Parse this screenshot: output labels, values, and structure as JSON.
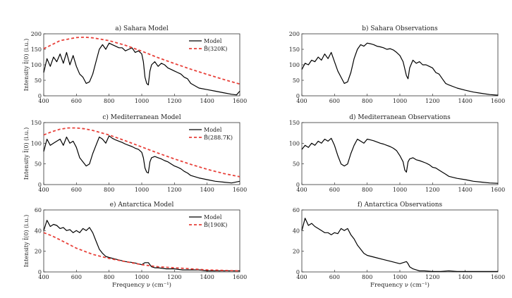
{
  "chart_data": [
    {
      "type": "line",
      "title": "a) Sahara Model",
      "ylabel": "Intensity Ĩ(0) (i.u.)",
      "xlabel": "",
      "xlim": [
        400,
        1600
      ],
      "ylim": [
        0,
        200
      ],
      "xticks": [
        "400",
        "600",
        "800",
        "1000",
        "1200",
        "1400",
        "1600"
      ],
      "yticks": [
        "0",
        "50",
        "100",
        "150",
        "200"
      ],
      "legend": "top-right",
      "series": [
        {
          "name": "Model",
          "color": "#000000",
          "dash": "solid",
          "x": [
            400,
            420,
            440,
            460,
            480,
            500,
            520,
            540,
            560,
            580,
            600,
            620,
            640,
            660,
            680,
            700,
            720,
            740,
            760,
            780,
            800,
            820,
            840,
            860,
            880,
            900,
            920,
            940,
            960,
            980,
            1000,
            1010,
            1020,
            1030,
            1040,
            1050,
            1060,
            1080,
            1100,
            1120,
            1140,
            1160,
            1180,
            1200,
            1220,
            1240,
            1260,
            1280,
            1300,
            1350,
            1400,
            1450,
            1500,
            1550,
            1580,
            1600
          ],
          "y": [
            75,
            120,
            95,
            125,
            110,
            135,
            105,
            140,
            100,
            130,
            95,
            70,
            60,
            40,
            45,
            70,
            110,
            150,
            165,
            150,
            170,
            165,
            160,
            155,
            155,
            145,
            150,
            155,
            140,
            145,
            135,
            110,
            60,
            40,
            35,
            80,
            100,
            110,
            95,
            105,
            100,
            90,
            85,
            80,
            75,
            70,
            60,
            55,
            40,
            25,
            20,
            15,
            10,
            5,
            3,
            15
          ]
        },
        {
          "name": "B̃(320K)",
          "color": "#e8413a",
          "dash": "dashed",
          "x": [
            400,
            500,
            600,
            650,
            700,
            800,
            900,
            1000,
            1100,
            1200,
            1300,
            1400,
            1500,
            1600
          ],
          "y": [
            152,
            178,
            188,
            189,
            187,
            178,
            163,
            144,
            123,
            104,
            86,
            69,
            53,
            38
          ]
        }
      ]
    },
    {
      "type": "line",
      "title": "b) Sahara Observations",
      "ylabel": "",
      "xlabel": "",
      "xlim": [
        400,
        1600
      ],
      "ylim": [
        0,
        200
      ],
      "xticks": [
        "400",
        "600",
        "800",
        "1000",
        "1200",
        "1400",
        "1600"
      ],
      "yticks": [
        "0",
        "50",
        "100",
        "150",
        "200"
      ],
      "series": [
        {
          "name": "",
          "color": "#000000",
          "dash": "solid",
          "x": [
            400,
            420,
            440,
            460,
            480,
            500,
            520,
            540,
            560,
            580,
            600,
            620,
            640,
            660,
            680,
            700,
            720,
            740,
            760,
            780,
            800,
            820,
            840,
            860,
            880,
            900,
            920,
            940,
            960,
            980,
            1000,
            1020,
            1040,
            1050,
            1060,
            1080,
            1100,
            1120,
            1140,
            1160,
            1180,
            1200,
            1220,
            1240,
            1260,
            1280,
            1300,
            1350,
            1400,
            1450,
            1500,
            1550,
            1600
          ],
          "y": [
            85,
            105,
            100,
            115,
            110,
            125,
            115,
            135,
            120,
            140,
            110,
            80,
            60,
            40,
            45,
            75,
            120,
            150,
            165,
            160,
            170,
            168,
            165,
            160,
            158,
            155,
            150,
            152,
            148,
            140,
            130,
            110,
            65,
            55,
            90,
            115,
            105,
            110,
            100,
            100,
            95,
            90,
            75,
            70,
            55,
            40,
            35,
            25,
            18,
            12,
            8,
            4,
            2
          ]
        }
      ]
    },
    {
      "type": "line",
      "title": "c) Mediterranean Model",
      "ylabel": "Intensity Ĩ(0) (i.u.)",
      "xlabel": "",
      "xlim": [
        400,
        1600
      ],
      "ylim": [
        0,
        150
      ],
      "xticks": [
        "400",
        "600",
        "800",
        "1000",
        "1200",
        "1400",
        "1600"
      ],
      "yticks": [
        "0",
        "50",
        "100",
        "150"
      ],
      "legend": "top-right",
      "series": [
        {
          "name": "Model",
          "color": "#000000",
          "dash": "solid",
          "x": [
            400,
            420,
            440,
            460,
            480,
            500,
            520,
            540,
            560,
            580,
            600,
            620,
            640,
            660,
            680,
            700,
            720,
            740,
            760,
            780,
            800,
            820,
            840,
            860,
            880,
            900,
            920,
            940,
            960,
            980,
            1000,
            1010,
            1020,
            1030,
            1040,
            1050,
            1060,
            1080,
            1100,
            1120,
            1140,
            1160,
            1180,
            1200,
            1220,
            1240,
            1260,
            1280,
            1300,
            1350,
            1400,
            1450,
            1500,
            1550,
            1600
          ],
          "y": [
            80,
            110,
            95,
            100,
            105,
            110,
            95,
            115,
            100,
            105,
            90,
            65,
            55,
            45,
            50,
            75,
            95,
            115,
            110,
            100,
            118,
            112,
            108,
            105,
            102,
            98,
            95,
            92,
            88,
            85,
            78,
            65,
            40,
            30,
            28,
            55,
            65,
            68,
            65,
            62,
            58,
            55,
            50,
            45,
            42,
            38,
            32,
            28,
            22,
            16,
            12,
            8,
            6,
            4,
            8
          ]
        },
        {
          "name": "B̃(288.7K)",
          "color": "#e8413a",
          "dash": "dashed",
          "x": [
            400,
            450,
            500,
            550,
            600,
            650,
            700,
            800,
            900,
            1000,
            1100,
            1200,
            1300,
            1400,
            1500,
            1600
          ],
          "y": [
            120,
            128,
            134,
            137,
            137,
            135,
            131,
            120,
            106,
            91,
            76,
            62,
            49,
            37,
            27,
            19
          ]
        }
      ]
    },
    {
      "type": "line",
      "title": "d) Mediterranean Observations",
      "ylabel": "",
      "xlabel": "",
      "xlim": [
        400,
        1600
      ],
      "ylim": [
        0,
        150
      ],
      "xticks": [
        "400",
        "600",
        "800",
        "1000",
        "1200",
        "1400",
        "1600"
      ],
      "yticks": [
        "0",
        "50",
        "100",
        "150"
      ],
      "series": [
        {
          "name": "",
          "color": "#000000",
          "dash": "solid",
          "x": [
            400,
            420,
            440,
            460,
            480,
            500,
            520,
            540,
            560,
            580,
            600,
            620,
            640,
            660,
            680,
            700,
            720,
            740,
            760,
            780,
            800,
            820,
            840,
            860,
            880,
            900,
            920,
            940,
            960,
            980,
            1000,
            1020,
            1030,
            1040,
            1050,
            1060,
            1080,
            1100,
            1120,
            1140,
            1160,
            1180,
            1200,
            1220,
            1240,
            1260,
            1280,
            1300,
            1350,
            1400,
            1450,
            1500,
            1550,
            1600
          ],
          "y": [
            85,
            95,
            90,
            100,
            95,
            105,
            100,
            110,
            105,
            112,
            95,
            70,
            50,
            45,
            50,
            75,
            95,
            110,
            105,
            100,
            110,
            108,
            106,
            103,
            100,
            98,
            95,
            92,
            88,
            82,
            70,
            55,
            35,
            30,
            55,
            62,
            65,
            60,
            58,
            55,
            52,
            48,
            42,
            40,
            35,
            30,
            25,
            20,
            15,
            12,
            8,
            6,
            4,
            3
          ]
        }
      ]
    },
    {
      "type": "line",
      "title": "e) Antarctica Model",
      "ylabel": "Intensity Ĩ(0) (i.u.)",
      "xlabel": "Frequency ν (cm⁻¹)",
      "xlim": [
        400,
        1600
      ],
      "ylim": [
        0,
        60
      ],
      "xticks": [
        "400",
        "600",
        "800",
        "1000",
        "1200",
        "1400",
        "1600"
      ],
      "yticks": [
        "0",
        "20",
        "40",
        "60"
      ],
      "legend": "top-right",
      "series": [
        {
          "name": "Model",
          "color": "#000000",
          "dash": "solid",
          "x": [
            400,
            420,
            440,
            460,
            480,
            500,
            520,
            540,
            560,
            580,
            600,
            620,
            640,
            660,
            680,
            700,
            720,
            740,
            760,
            780,
            800,
            850,
            900,
            950,
            1000,
            1020,
            1040,
            1050,
            1060,
            1080,
            1100,
            1150,
            1200,
            1250,
            1300,
            1350,
            1400,
            1450,
            1500,
            1550,
            1600
          ],
          "y": [
            40,
            50,
            44,
            46,
            45,
            42,
            43,
            40,
            41,
            38,
            40,
            38,
            42,
            40,
            43,
            38,
            30,
            22,
            18,
            15,
            14,
            12,
            10,
            9,
            7,
            9,
            9,
            7,
            5,
            4,
            4,
            3,
            3,
            2,
            2,
            2,
            1,
            1,
            1,
            1,
            1
          ]
        },
        {
          "name": "B̃(190K)",
          "color": "#e8413a",
          "dash": "dashed",
          "x": [
            400,
            450,
            500,
            550,
            600,
            650,
            700,
            750,
            800,
            900,
            1000,
            1100,
            1200,
            1300,
            1400,
            1500,
            1600
          ],
          "y": [
            38,
            35,
            31,
            27,
            23,
            20,
            17,
            15,
            13,
            10,
            7,
            5,
            4,
            3,
            2,
            1.5,
            1
          ]
        }
      ]
    },
    {
      "type": "line",
      "title": "f) Antarctica Observations",
      "ylabel": "",
      "xlabel": "Frequency ν (cm⁻¹)",
      "xlim": [
        400,
        1600
      ],
      "ylim": [
        0,
        60
      ],
      "xticks": [
        "400",
        "600",
        "800",
        "1000",
        "1200",
        "1400",
        "1600"
      ],
      "yticks": [
        "0",
        "20",
        "40",
        "60"
      ],
      "series": [
        {
          "name": "",
          "color": "#000000",
          "dash": "solid",
          "x": [
            400,
            420,
            440,
            460,
            480,
            500,
            520,
            540,
            560,
            580,
            600,
            620,
            640,
            660,
            680,
            700,
            720,
            740,
            760,
            780,
            800,
            850,
            900,
            950,
            1000,
            1020,
            1040,
            1050,
            1060,
            1080,
            1100,
            1120,
            1150,
            1200,
            1250,
            1300,
            1350,
            1400,
            1450,
            1500,
            1550,
            1600
          ],
          "y": [
            40,
            52,
            45,
            47,
            44,
            42,
            40,
            38,
            38,
            36,
            38,
            37,
            42,
            40,
            42,
            36,
            32,
            26,
            22,
            18,
            16,
            14,
            12,
            10,
            8,
            9,
            10,
            8,
            5,
            3,
            2,
            1,
            1,
            0.5,
            0.5,
            1,
            0.5,
            0.5,
            0.5,
            0.5,
            0.5,
            0.5
          ]
        }
      ]
    }
  ]
}
